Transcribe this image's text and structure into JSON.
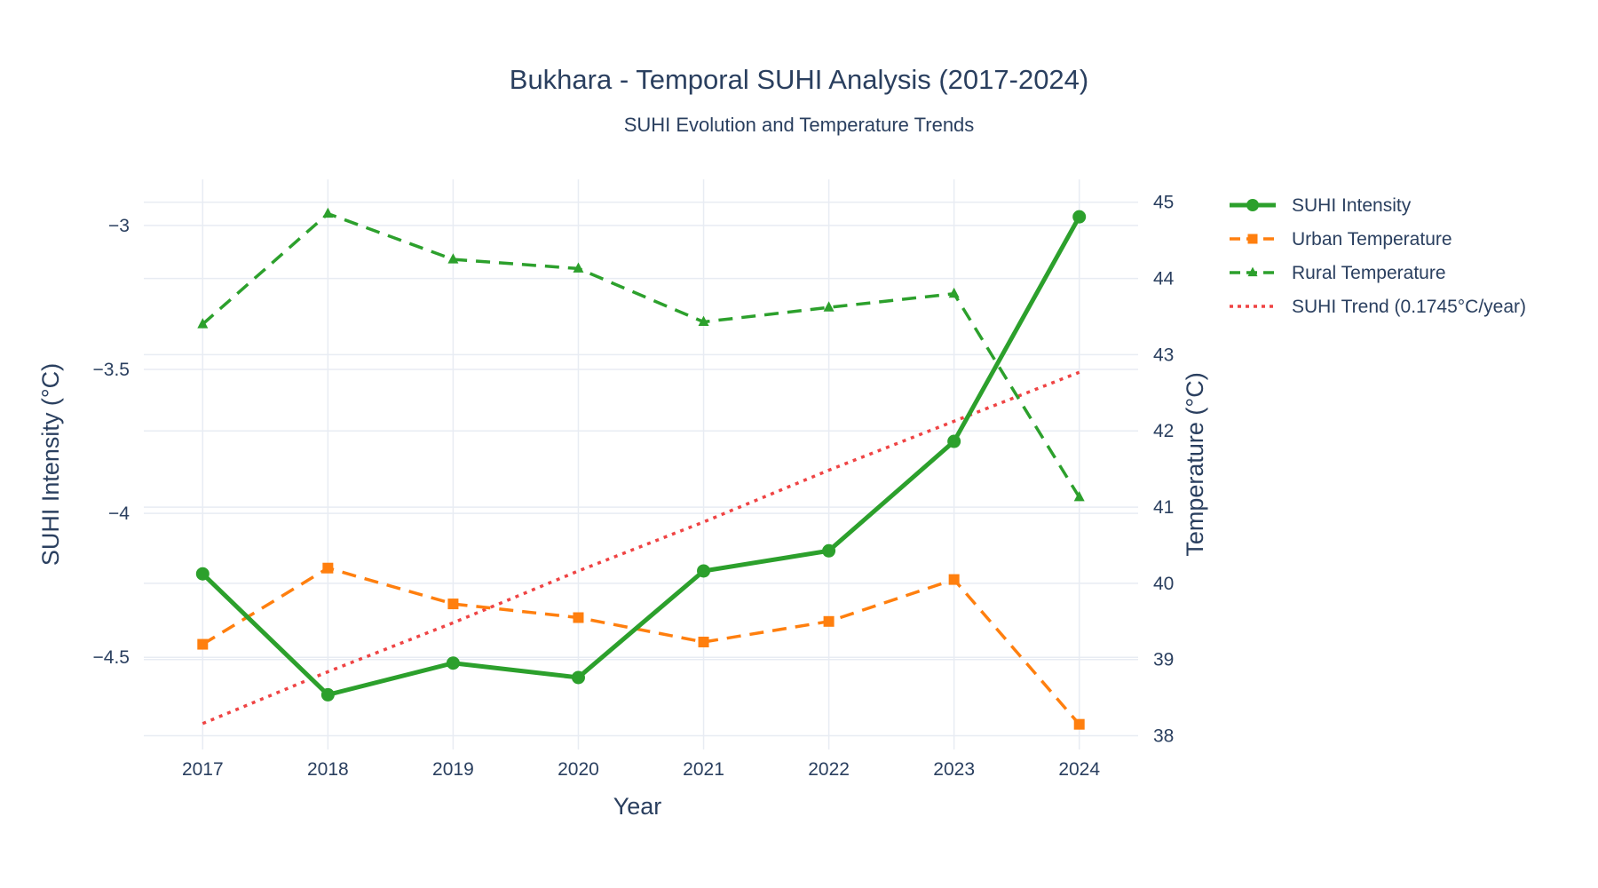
{
  "chart_data": {
    "type": "line",
    "title": "Bukhara - Temporal SUHI Analysis (2017-2024)",
    "subtitle": "SUHI Evolution and Temperature Trends",
    "xlabel": "Year",
    "ylabel": "SUHI Intensity (°C)",
    "y2label": "Temperature (°C)",
    "x": [
      2017,
      2018,
      2019,
      2020,
      2021,
      2022,
      2023,
      2024
    ],
    "x_tick_labels": [
      "2017",
      "2018",
      "2019",
      "2020",
      "2021",
      "2022",
      "2023",
      "2024"
    ],
    "xlim": [
      2016.53,
      2024.47
    ],
    "ylim": [
      -4.82,
      -2.84
    ],
    "y_ticks": [
      -3,
      -3.5,
      -4,
      -4.5
    ],
    "y_tick_labels": [
      "−3",
      "−3.5",
      "−4",
      "−4.5"
    ],
    "y2lim": [
      37.82,
      45.3
    ],
    "y2_ticks": [
      38,
      39,
      40,
      41,
      42,
      43,
      44,
      45
    ],
    "y2_tick_labels": [
      "38",
      "39",
      "40",
      "41",
      "42",
      "43",
      "44",
      "45"
    ],
    "grid": true,
    "legend_position": "right-top",
    "series": [
      {
        "name": "SUHI Intensity",
        "axis": "y",
        "color": "#2ca02c",
        "dash": "solid",
        "marker": "circle",
        "values": [
          -4.21,
          -4.63,
          -4.52,
          -4.57,
          -4.2,
          -4.13,
          -3.75,
          -2.97
        ]
      },
      {
        "name": "Urban Temperature",
        "axis": "y2",
        "color": "#ff7f0e",
        "dash": "dash",
        "marker": "square",
        "values": [
          39.2,
          40.2,
          39.73,
          39.55,
          39.23,
          39.5,
          40.05,
          38.15
        ]
      },
      {
        "name": "Rural Temperature",
        "axis": "y2",
        "color": "#2ca02c",
        "dash": "dash",
        "marker": "triangle",
        "values": [
          43.4,
          44.85,
          44.25,
          44.13,
          43.43,
          43.62,
          43.8,
          41.13
        ]
      },
      {
        "name": "SUHI Trend (0.1745°C/year)",
        "axis": "y",
        "color": "#ef4444",
        "dash": "dot",
        "marker": "none",
        "values": [
          -4.73,
          -4.55,
          -4.38,
          -4.2,
          -4.03,
          -3.85,
          -3.68,
          -3.51
        ]
      }
    ]
  }
}
